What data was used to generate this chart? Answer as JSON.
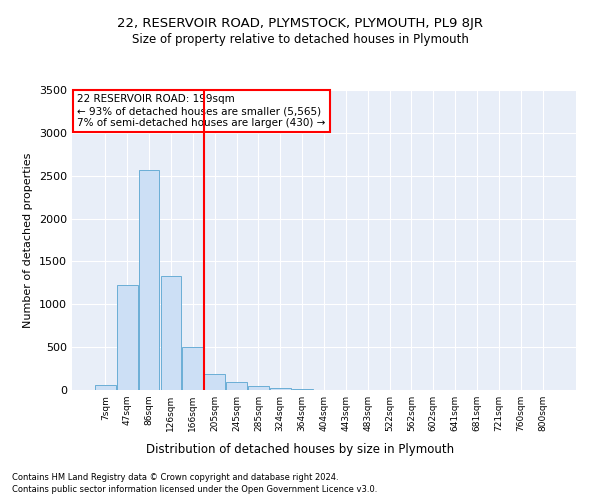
{
  "title1": "22, RESERVOIR ROAD, PLYMSTOCK, PLYMOUTH, PL9 8JR",
  "title2": "Size of property relative to detached houses in Plymouth",
  "xlabel": "Distribution of detached houses by size in Plymouth",
  "ylabel": "Number of detached properties",
  "bar_labels": [
    "7sqm",
    "47sqm",
    "86sqm",
    "126sqm",
    "166sqm",
    "205sqm",
    "245sqm",
    "285sqm",
    "324sqm",
    "364sqm",
    "404sqm",
    "443sqm",
    "483sqm",
    "522sqm",
    "562sqm",
    "602sqm",
    "641sqm",
    "681sqm",
    "721sqm",
    "760sqm",
    "800sqm"
  ],
  "bar_values": [
    55,
    1220,
    2570,
    1330,
    500,
    185,
    90,
    50,
    25,
    10,
    5,
    3,
    2,
    1,
    1,
    0,
    0,
    0,
    0,
    0,
    0
  ],
  "bar_color": "#ccdff5",
  "bar_edge_color": "#6aaed6",
  "red_line_x": 4.5,
  "annotation_line1": "22 RESERVOIR ROAD: 199sqm",
  "annotation_line2": "← 93% of detached houses are smaller (5,565)",
  "annotation_line3": "7% of semi-detached houses are larger (430) →",
  "annotation_box_color": "white",
  "annotation_box_edge_color": "red",
  "red_line_color": "red",
  "ylim": [
    0,
    3500
  ],
  "yticks": [
    0,
    500,
    1000,
    1500,
    2000,
    2500,
    3000,
    3500
  ],
  "footnote1": "Contains HM Land Registry data © Crown copyright and database right 2024.",
  "footnote2": "Contains public sector information licensed under the Open Government Licence v3.0.",
  "bg_color": "#e8eef8",
  "fig_bg_color": "white"
}
